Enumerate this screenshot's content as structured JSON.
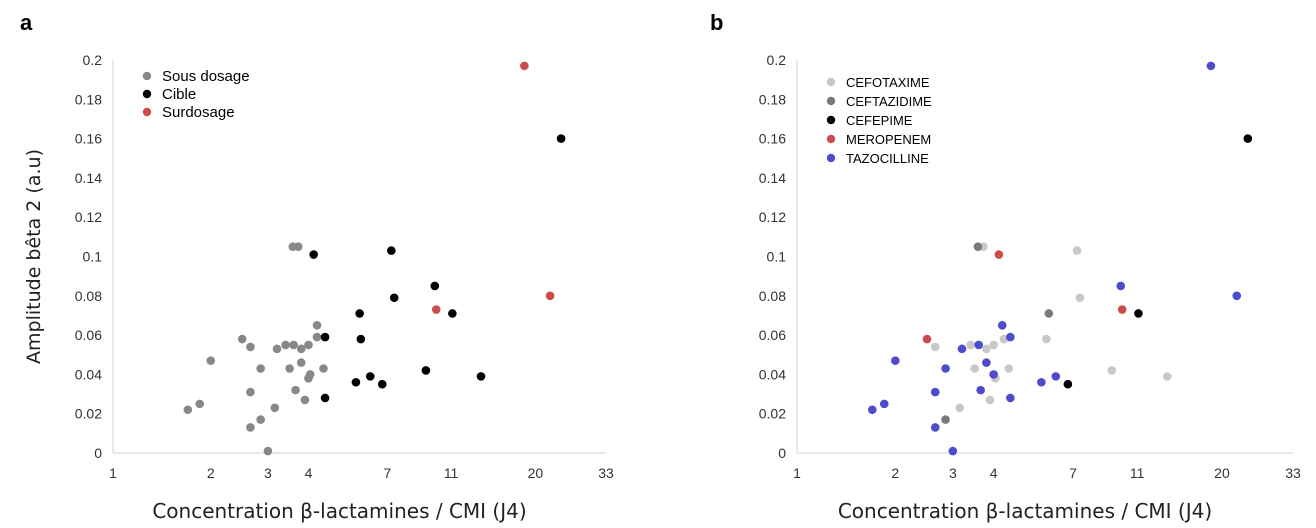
{
  "colors": {
    "sous_dosage": "#888888",
    "cible": "#000000",
    "surdosage": "#cc4c4c",
    "cefotaxime": "#c8c8c8",
    "ceftazidime": "#7a7a7a",
    "cefepime": "#000000",
    "meropenem": "#cc4c4c",
    "tazocilline": "#4c4ccc"
  },
  "chart_data": [
    {
      "type": "scatter",
      "panel": "a",
      "xlabel": "Concentration β-lactamines / CMI (J4)",
      "ylabel": "Amplitude bêta 2 (a.u)",
      "x_scale": "log",
      "xlim": [
        1,
        33
      ],
      "ylim": [
        0,
        0.2
      ],
      "x_ticks": [
        1,
        2,
        3,
        4,
        7,
        11,
        20,
        33
      ],
      "y_ticks": [
        0,
        0.02,
        0.04,
        0.06,
        0.08,
        0.1,
        0.12,
        0.14,
        0.16,
        0.18,
        0.2
      ],
      "y_tick_labels": [
        "0",
        "0.02",
        "0.04",
        "0.06",
        "0.08",
        "0.1",
        "0.12",
        "0.14",
        "0.16",
        "0.18",
        "0.2"
      ],
      "grid": false,
      "legend_position": "top-left",
      "series": [
        {
          "name": "Sous dosage",
          "color": "#888888",
          "points": [
            [
              1.7,
              0.022
            ],
            [
              1.85,
              0.025
            ],
            [
              2.0,
              0.047
            ],
            [
              2.5,
              0.058
            ],
            [
              2.65,
              0.054
            ],
            [
              2.65,
              0.031
            ],
            [
              2.65,
              0.013
            ],
            [
              2.85,
              0.017
            ],
            [
              2.85,
              0.043
            ],
            [
              3.0,
              0.001
            ],
            [
              3.15,
              0.023
            ],
            [
              3.2,
              0.053
            ],
            [
              3.4,
              0.055
            ],
            [
              3.5,
              0.043
            ],
            [
              3.58,
              0.105
            ],
            [
              3.6,
              0.055
            ],
            [
              3.65,
              0.032
            ],
            [
              3.72,
              0.105
            ],
            [
              3.8,
              0.046
            ],
            [
              3.8,
              0.053
            ],
            [
              3.9,
              0.027
            ],
            [
              4.0,
              0.055
            ],
            [
              4.0,
              0.038
            ],
            [
              4.05,
              0.04
            ],
            [
              4.25,
              0.065
            ],
            [
              4.25,
              0.059
            ],
            [
              4.45,
              0.043
            ]
          ]
        },
        {
          "name": "Cible",
          "color": "#000000",
          "points": [
            [
              4.15,
              0.101
            ],
            [
              4.5,
              0.059
            ],
            [
              4.5,
              0.028
            ],
            [
              5.6,
              0.036
            ],
            [
              5.75,
              0.071
            ],
            [
              5.8,
              0.058
            ],
            [
              6.2,
              0.039
            ],
            [
              6.75,
              0.035
            ],
            [
              7.2,
              0.103
            ],
            [
              7.35,
              0.079
            ],
            [
              9.2,
              0.042
            ],
            [
              9.8,
              0.085
            ],
            [
              11.1,
              0.071
            ],
            [
              13.6,
              0.039
            ],
            [
              24.0,
              0.16
            ]
          ]
        },
        {
          "name": "Surdosage",
          "color": "#cc4c4c",
          "points": [
            [
              9.9,
              0.073
            ],
            [
              18.5,
              0.197
            ],
            [
              22.2,
              0.08
            ]
          ]
        }
      ]
    },
    {
      "type": "scatter",
      "panel": "b",
      "xlabel": "Concentration β-lactamines / CMI (J4)",
      "ylabel": "",
      "x_scale": "log",
      "xlim": [
        1,
        33
      ],
      "ylim": [
        0,
        0.2
      ],
      "x_ticks": [
        1,
        2,
        3,
        4,
        7,
        11,
        20,
        33
      ],
      "y_ticks": [
        0,
        0.02,
        0.04,
        0.06,
        0.08,
        0.1,
        0.12,
        0.14,
        0.16,
        0.18,
        0.2
      ],
      "y_tick_labels": [
        "0",
        "0.02",
        "0.04",
        "0.06",
        "0.08",
        "0.1",
        "0.12",
        "0.14",
        "0.16",
        "0.18",
        "0.2"
      ],
      "grid": false,
      "legend_position": "top-left",
      "series": [
        {
          "name": "CEFOTAXIME",
          "color": "#c8c8c8",
          "points": [
            [
              2.65,
              0.054
            ],
            [
              3.15,
              0.023
            ],
            [
              3.4,
              0.055
            ],
            [
              3.5,
              0.043
            ],
            [
              3.72,
              0.105
            ],
            [
              3.8,
              0.053
            ],
            [
              3.9,
              0.027
            ],
            [
              4.0,
              0.055
            ],
            [
              4.05,
              0.038
            ],
            [
              4.3,
              0.058
            ],
            [
              4.45,
              0.043
            ],
            [
              5.8,
              0.058
            ],
            [
              7.2,
              0.103
            ],
            [
              7.35,
              0.079
            ],
            [
              9.2,
              0.042
            ],
            [
              13.6,
              0.039
            ]
          ]
        },
        {
          "name": "CEFTAZIDIME",
          "color": "#7a7a7a",
          "points": [
            [
              2.85,
              0.017
            ],
            [
              3.58,
              0.105
            ],
            [
              5.9,
              0.071
            ]
          ]
        },
        {
          "name": "CEFEPIME",
          "color": "#000000",
          "points": [
            [
              6.75,
              0.035
            ],
            [
              11.1,
              0.071
            ],
            [
              24.0,
              0.16
            ]
          ]
        },
        {
          "name": "MEROPENEM",
          "color": "#cc4c4c",
          "points": [
            [
              2.5,
              0.058
            ],
            [
              4.15,
              0.101
            ],
            [
              9.9,
              0.073
            ]
          ]
        },
        {
          "name": "TAZOCILLINE",
          "color": "#4c4ccc",
          "points": [
            [
              1.7,
              0.022
            ],
            [
              1.85,
              0.025
            ],
            [
              2.0,
              0.047
            ],
            [
              2.65,
              0.031
            ],
            [
              2.65,
              0.013
            ],
            [
              2.85,
              0.043
            ],
            [
              3.0,
              0.001
            ],
            [
              3.2,
              0.053
            ],
            [
              3.6,
              0.055
            ],
            [
              3.65,
              0.032
            ],
            [
              3.8,
              0.046
            ],
            [
              4.0,
              0.04
            ],
            [
              4.25,
              0.065
            ],
            [
              4.5,
              0.059
            ],
            [
              4.5,
              0.028
            ],
            [
              5.6,
              0.036
            ],
            [
              6.2,
              0.039
            ],
            [
              9.8,
              0.085
            ],
            [
              18.5,
              0.197
            ],
            [
              22.2,
              0.08
            ]
          ]
        }
      ]
    }
  ]
}
